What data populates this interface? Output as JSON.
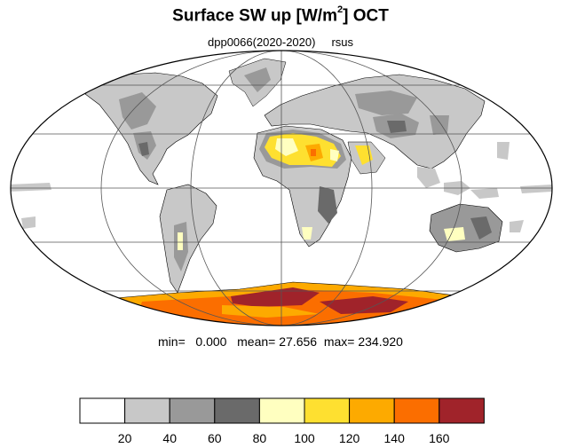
{
  "title": {
    "prefix": "Surface SW up [W/m",
    "superscript": "2",
    "suffix": "]  OCT"
  },
  "subtitle": {
    "experiment": "dpp0066(2020-2020)",
    "variable": "rsus"
  },
  "stats": {
    "min_label": "min=",
    "min_value": "0.000",
    "mean_label": "mean=",
    "mean_value": "27.656",
    "max_label": "max=",
    "max_value": "234.920"
  },
  "colorbar": {
    "bins": [
      {
        "color": "#ffffff"
      },
      {
        "color": "#c8c8c8"
      },
      {
        "color": "#999999"
      },
      {
        "color": "#6a6a6a"
      },
      {
        "color": "#ffffc0"
      },
      {
        "color": "#fee030"
      },
      {
        "color": "#fdaa00"
      },
      {
        "color": "#fb6e00"
      },
      {
        "color": "#a0232a"
      }
    ],
    "labels": [
      "20",
      "40",
      "60",
      "80",
      "100",
      "120",
      "140",
      "160"
    ]
  }
}
